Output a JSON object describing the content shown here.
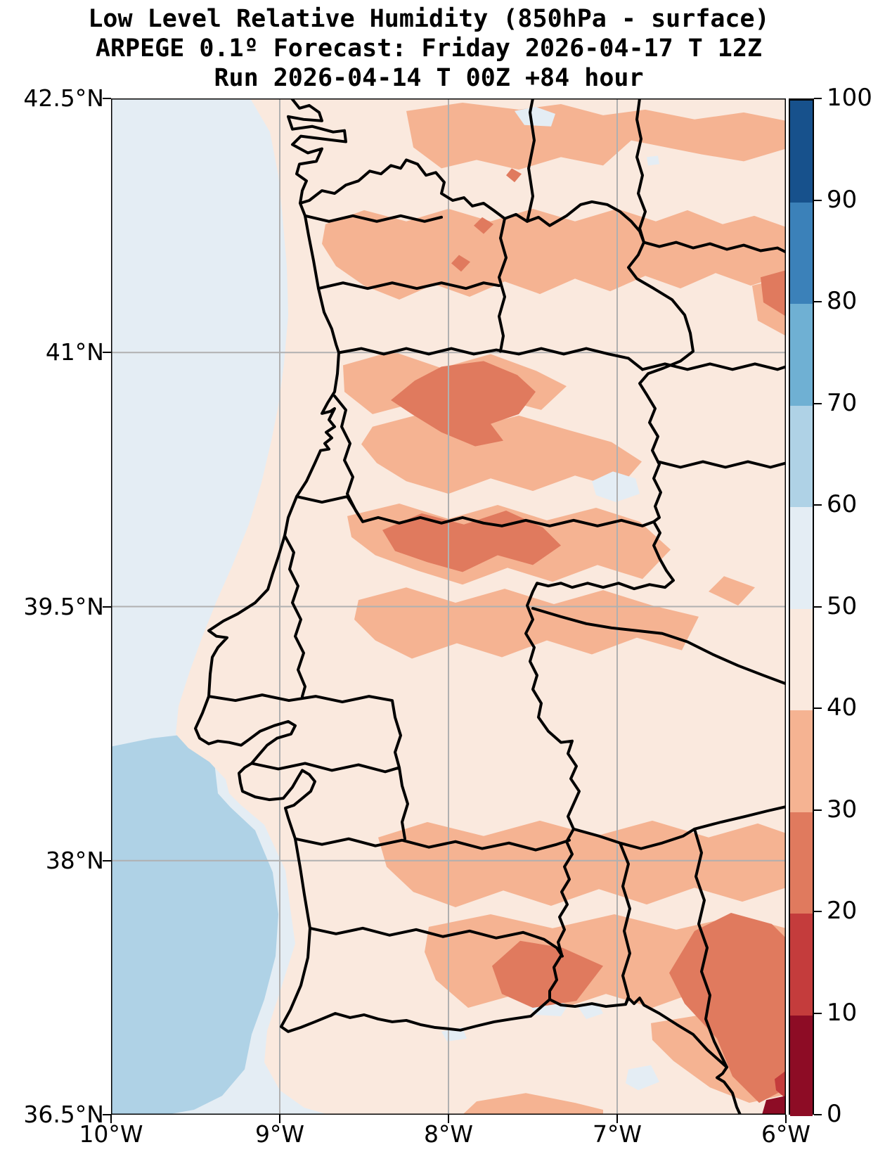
{
  "title": {
    "line1": "Low Level Relative Humidity (850hPa - surface)",
    "line2": "ARPEGE 0.1º Forecast: Friday 2026-04-17 T 12Z",
    "line3": "Run 2026-04-14 T 00Z +84 hour"
  },
  "axes": {
    "x_ticks": [
      {
        "label": "10°W",
        "lon": -10
      },
      {
        "label": "9°W",
        "lon": -9
      },
      {
        "label": "8°W",
        "lon": -8
      },
      {
        "label": "7°W",
        "lon": -7
      },
      {
        "label": "6°W",
        "lon": -6
      }
    ],
    "y_ticks": [
      {
        "label": "42.5°N",
        "lat": 42.5
      },
      {
        "label": "41°N",
        "lat": 41
      },
      {
        "label": "39.5°N",
        "lat": 39.5
      },
      {
        "label": "38°N",
        "lat": 38
      },
      {
        "label": "36.5°N",
        "lat": 36.5
      }
    ],
    "gridline_lons": [
      -9,
      -8,
      -7
    ],
    "gridline_lats": [
      41,
      39.5,
      38
    ]
  },
  "colorbar": {
    "tick_labels": [
      "0",
      "10",
      "20",
      "30",
      "40",
      "50",
      "60",
      "70",
      "80",
      "90",
      "100"
    ],
    "segments": [
      {
        "range": "0-10",
        "color": "#8d0c25"
      },
      {
        "range": "10-20",
        "color": "#c43c3c"
      },
      {
        "range": "20-30",
        "color": "#e07a5e"
      },
      {
        "range": "30-40",
        "color": "#f5b392"
      },
      {
        "range": "40-50",
        "color": "#fae9de"
      },
      {
        "range": "50-60",
        "color": "#e4edf4"
      },
      {
        "range": "60-70",
        "color": "#afd2e6"
      },
      {
        "range": "70-80",
        "color": "#6fb0d3"
      },
      {
        "range": "80-90",
        "color": "#3b81b9"
      },
      {
        "range": "90-100",
        "color": "#17518c"
      }
    ]
  },
  "chart_data": {
    "type": "heatmap",
    "subtype": "filled-contour-forecast-map",
    "variable": "Low Level Relative Humidity (850hPa - surface)",
    "model": "ARPEGE 0.1º",
    "valid_time": "Friday 2026-04-17 T 12Z",
    "run_time": "2026-04-14 T 00Z",
    "lead_hours": 84,
    "extent": {
      "lon_min": -10,
      "lon_max": -6,
      "lat_min": 36.5,
      "lat_max": 42.5
    },
    "levels": [
      0,
      10,
      20,
      30,
      40,
      50,
      60,
      70,
      80,
      90,
      100
    ],
    "colors": [
      "#8d0c25",
      "#c43c3c",
      "#e07a5e",
      "#f5b392",
      "#fae9de",
      "#e4edf4",
      "#afd2e6",
      "#6fb0d3",
      "#3b81b9",
      "#17518c"
    ],
    "grid_on": true,
    "legend_position": "right-colorbar",
    "features": [
      {
        "region": "Atlantic offshore north of ~38.7N",
        "value_range": "50-60"
      },
      {
        "region": "Atlantic southwest of Lisbon / Alentejo coast (large patch)",
        "value_range": "60-70"
      },
      {
        "region": "coastal strip and most lowland Portugal / west Spain",
        "value_range": "40-50"
      },
      {
        "region": "northern interior (Minho, Tras-os-Montes, Galicia, Douro)",
        "value_range": "30-40"
      },
      {
        "region": "Viseu-Guarda core (~40.8N 7.6W)",
        "value_range": "20-30"
      },
      {
        "region": "Castelo Branco / upper Tejo core (~39.8N 7.6W)",
        "value_range": "20-30"
      },
      {
        "region": "Alentejo and Algarve interior band",
        "value_range": "30-40 with 20-30 cores"
      },
      {
        "region": "SW Andalusia (Huelva-Seville, ~37.5N 6.3W)",
        "value_range": "20-30"
      },
      {
        "region": "far SE corner near Cadiz (~36.6N 6.05W)",
        "value_range": "0-20"
      }
    ]
  }
}
